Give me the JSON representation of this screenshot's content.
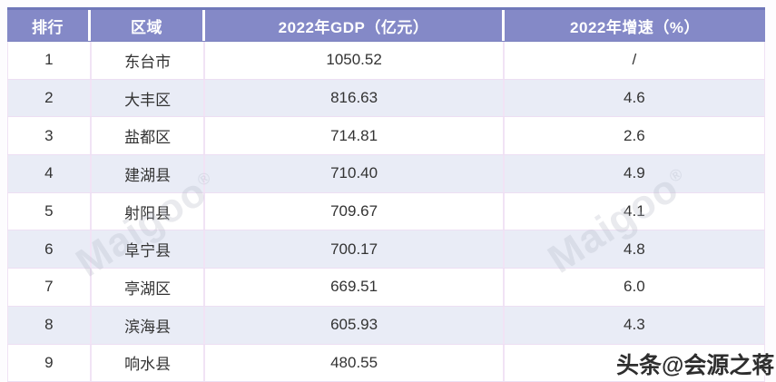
{
  "chart_data": {
    "type": "table",
    "title": "",
    "columns": [
      "排行",
      "区域",
      "2022年GDP（亿元）",
      "2022年增速（%）"
    ],
    "rows": [
      [
        "1",
        "东台市",
        "1050.52",
        "/"
      ],
      [
        "2",
        "大丰区",
        "816.63",
        "4.6"
      ],
      [
        "3",
        "盐都区",
        "714.81",
        "2.6"
      ],
      [
        "4",
        "建湖县",
        "710.40",
        "4.9"
      ],
      [
        "5",
        "射阳县",
        "709.67",
        "4.1"
      ],
      [
        "6",
        "阜宁县",
        "700.17",
        "4.8"
      ],
      [
        "7",
        "亭湖区",
        "669.51",
        "6.0"
      ],
      [
        "8",
        "滨海县",
        "605.93",
        "4.3"
      ],
      [
        "9",
        "响水县",
        "480.55",
        ""
      ]
    ],
    "layout": {
      "striped": true,
      "alignment": "center",
      "last_row_clipped": true
    }
  },
  "watermarks": {
    "brand": "Maigoo",
    "reg": "®",
    "credit": "头条@会源之蒋"
  },
  "colors": {
    "header_bg": "#8489c7",
    "header_top_border": "#6f77b9",
    "header_text": "#ffffff",
    "alt_row_bg": "#e9ecf6",
    "cell_border": "#eedff2",
    "body_text": "#333333",
    "credit_text": "#2e2e2e"
  }
}
